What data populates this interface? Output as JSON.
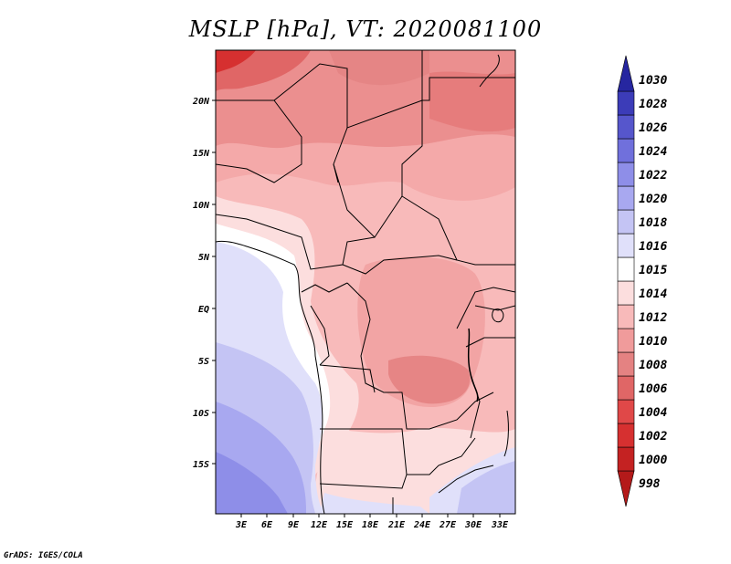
{
  "title": "MSLP [hPa], VT: 2020081100",
  "footer": "GrADS: IGES/COLA",
  "map": {
    "lat_labels": [
      "20N",
      "15N",
      "10N",
      "5N",
      "EQ",
      "5S",
      "10S",
      "15S"
    ],
    "lon_labels": [
      "3E",
      "6E",
      "9E",
      "12E",
      "15E",
      "18E",
      "21E",
      "24E",
      "27E",
      "30E",
      "33E"
    ]
  },
  "colorbar": {
    "levels": [
      "998",
      "1000",
      "1002",
      "1004",
      "1006",
      "1008",
      "1010",
      "1012",
      "1014",
      "1015",
      "1016",
      "1018",
      "1020",
      "1022",
      "1024",
      "1026",
      "1028",
      "1030"
    ],
    "colors": [
      "#b41a1a",
      "#c42222",
      "#d63030",
      "#e04848",
      "#e06666",
      "#e48282",
      "#f09b9b",
      "#f8baba",
      "#fcdede",
      "#ffffff",
      "#e0e0fa",
      "#c4c4f4",
      "#a8a8f0",
      "#8e8ee8",
      "#7070dc",
      "#5656cc",
      "#3c3cb8",
      "#2626a0"
    ]
  }
}
